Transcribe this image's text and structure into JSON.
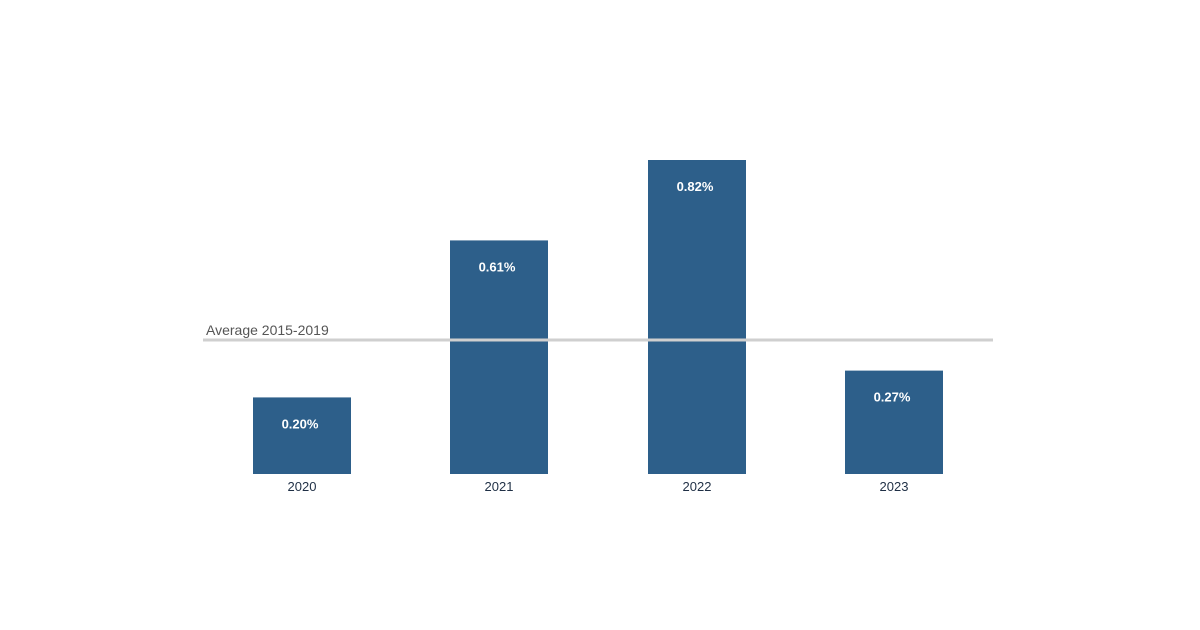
{
  "chart_data": {
    "type": "bar",
    "title": "",
    "xlabel": "",
    "ylabel": "",
    "categories": [
      "2020",
      "2021",
      "2022",
      "2023"
    ],
    "values": [
      0.2,
      0.61,
      0.82,
      0.27
    ],
    "value_labels": [
      "0.20%",
      "0.61%",
      "0.82%",
      "0.27%"
    ],
    "ylim": [
      0,
      0.82
    ],
    "grid": false,
    "reference_line": {
      "label": "Average 2015-2019",
      "value": 0.35
    },
    "colors": {
      "bar": "#2d5f8a",
      "reference_line": "#cfcfcf",
      "value_label": "#ffffff",
      "tick_label": "#1f2f45",
      "reference_label": "#555555"
    }
  }
}
